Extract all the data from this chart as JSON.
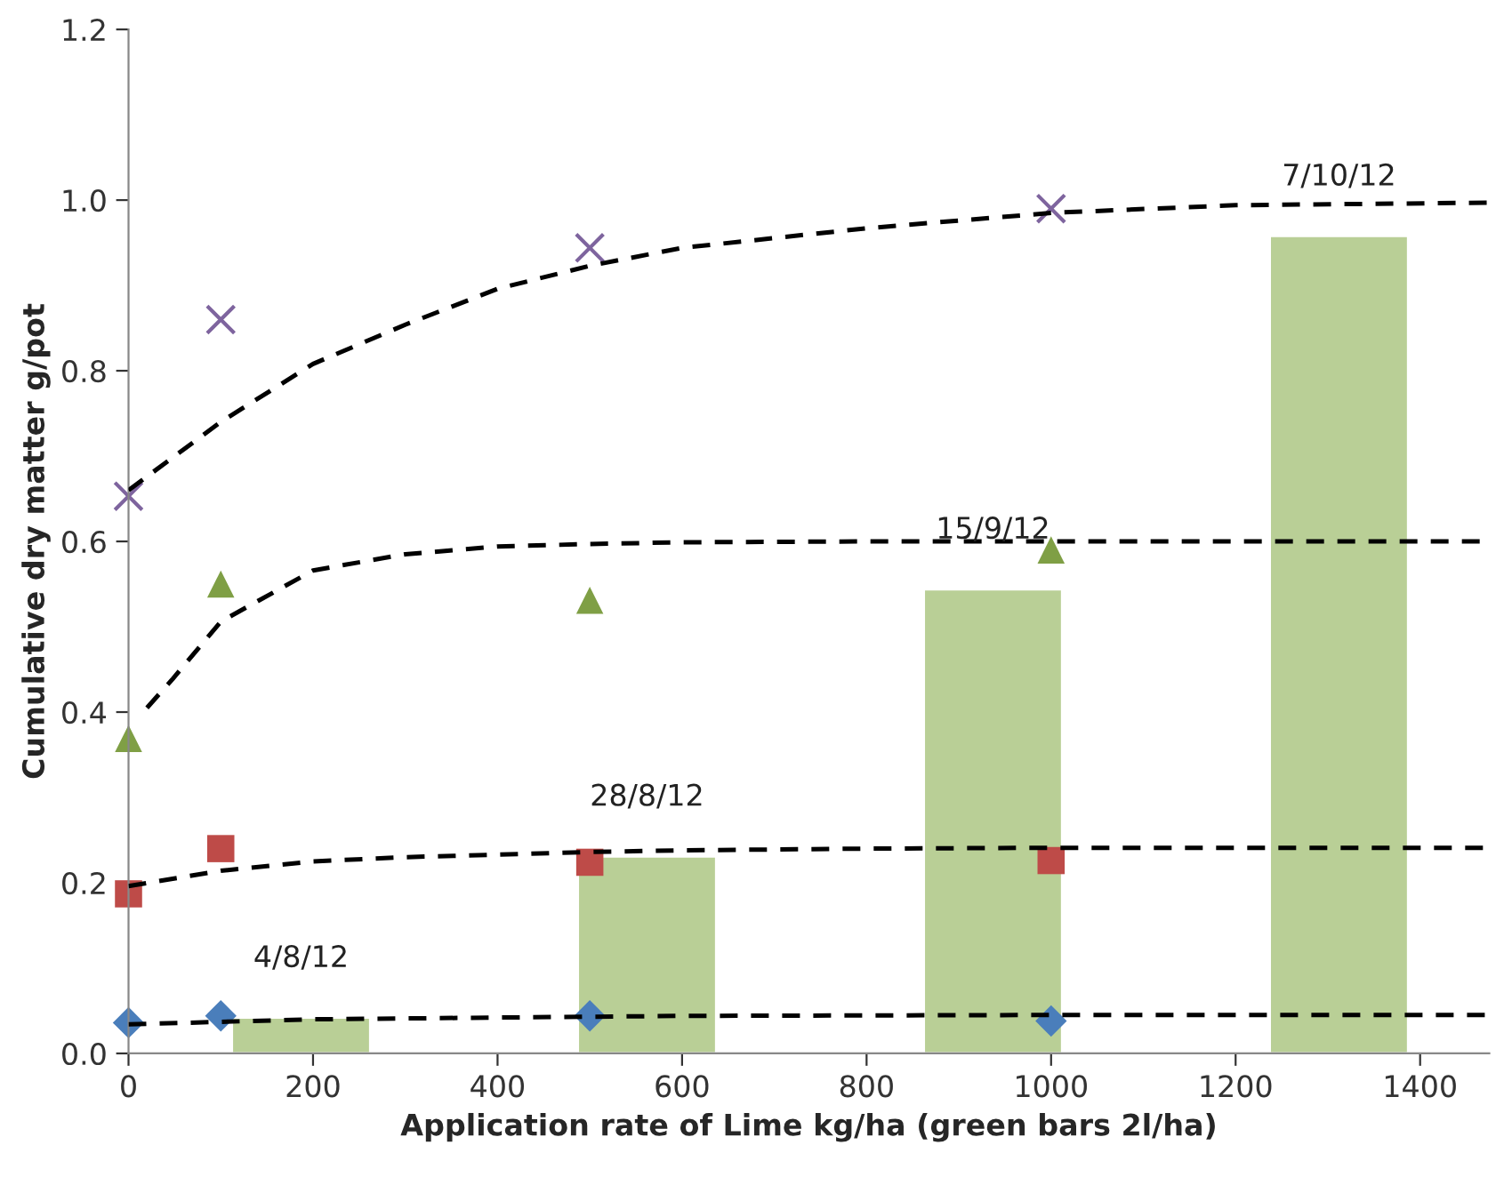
{
  "chart_data": {
    "type": "scatter",
    "xlabel": "Application rate of Lime kg/ha (green bars 2l/ha)",
    "ylabel": "Cumulative dry matter g/pot",
    "xlim": [
      0,
      1475
    ],
    "xticks": [
      0,
      200,
      400,
      600,
      800,
      1000,
      1200,
      1400
    ],
    "ylim": [
      0,
      1.2
    ],
    "yticks": [
      {
        "value": 0,
        "label": "0.0"
      },
      {
        "value": 0.2,
        "label": "0.2"
      },
      {
        "value": 0.4,
        "label": "0.4"
      },
      {
        "value": 0.6,
        "label": "0.6"
      },
      {
        "value": 0.8,
        "label": "0.8"
      },
      {
        "value": 1.0,
        "label": "1.0"
      },
      {
        "value": 1.2,
        "label": "1.2"
      }
    ],
    "grid": false,
    "legend": false,
    "series": [
      {
        "type": "bar",
        "color": "#b9cf96",
        "x": [
          187,
          562,
          937,
          1312
        ],
        "values": [
          0.042,
          0.231,
          0.544,
          0.958
        ]
      },
      {
        "type": "line",
        "color": "#000000",
        "line_style": "dashed",
        "marker": "none",
        "x": [
          0,
          100,
          200,
          400,
          600,
          1000,
          1475
        ],
        "values": [
          0.034,
          0.037,
          0.04,
          0.042,
          0.044,
          0.045,
          0.045
        ]
      },
      {
        "type": "line",
        "color": "#000000",
        "line_style": "dashed",
        "marker": "none",
        "x": [
          0,
          100,
          200,
          300,
          400,
          500,
          600,
          800,
          1000,
          1475
        ],
        "values": [
          0.196,
          0.214,
          0.225,
          0.23,
          0.233,
          0.236,
          0.238,
          0.24,
          0.241,
          0.241
        ]
      },
      {
        "type": "line",
        "color": "#000000",
        "line_style": "dashed",
        "marker": "none",
        "x": [
          20,
          48,
          100,
          200,
          300,
          400,
          500,
          600,
          800,
          1475
        ],
        "values": [
          0.405,
          0.439,
          0.506,
          0.566,
          0.585,
          0.594,
          0.597,
          0.599,
          0.6,
          0.6
        ]
      },
      {
        "type": "line",
        "color": "#000000",
        "line_style": "dashed",
        "marker": "none",
        "x": [
          0,
          100,
          200,
          300,
          400,
          500,
          600,
          800,
          1000,
          1200,
          1475
        ],
        "values": [
          0.66,
          0.74,
          0.808,
          0.854,
          0.896,
          0.923,
          0.944,
          0.967,
          0.985,
          0.994,
          0.997
        ]
      },
      {
        "color": "#4a7ebb",
        "marker": "diamond",
        "x": [
          0,
          100,
          500,
          1000
        ],
        "values": [
          0.036,
          0.044,
          0.044,
          0.038
        ]
      },
      {
        "color": "#be4b48",
        "marker": "square",
        "x": [
          0,
          100,
          500,
          1000
        ],
        "values": [
          0.187,
          0.24,
          0.224,
          0.226
        ]
      },
      {
        "color": "#7f9f45",
        "marker": "triangle",
        "x": [
          0,
          100,
          500,
          1000
        ],
        "values": [
          0.369,
          0.55,
          0.531,
          0.59
        ]
      },
      {
        "color": "#7e649e",
        "marker": "cross",
        "x": [
          0,
          100,
          500,
          1000
        ],
        "values": [
          0.653,
          0.86,
          0.944,
          0.99
        ]
      }
    ],
    "annotations": [
      {
        "text": "4/8/12",
        "x": 187,
        "y": 0.042
      },
      {
        "text": "28/8/12",
        "x": 562,
        "y": 0.231
      },
      {
        "text": "15/9/12",
        "x": 937,
        "y": 0.544
      },
      {
        "text": "7/10/12",
        "x": 1312,
        "y": 0.958
      }
    ]
  }
}
